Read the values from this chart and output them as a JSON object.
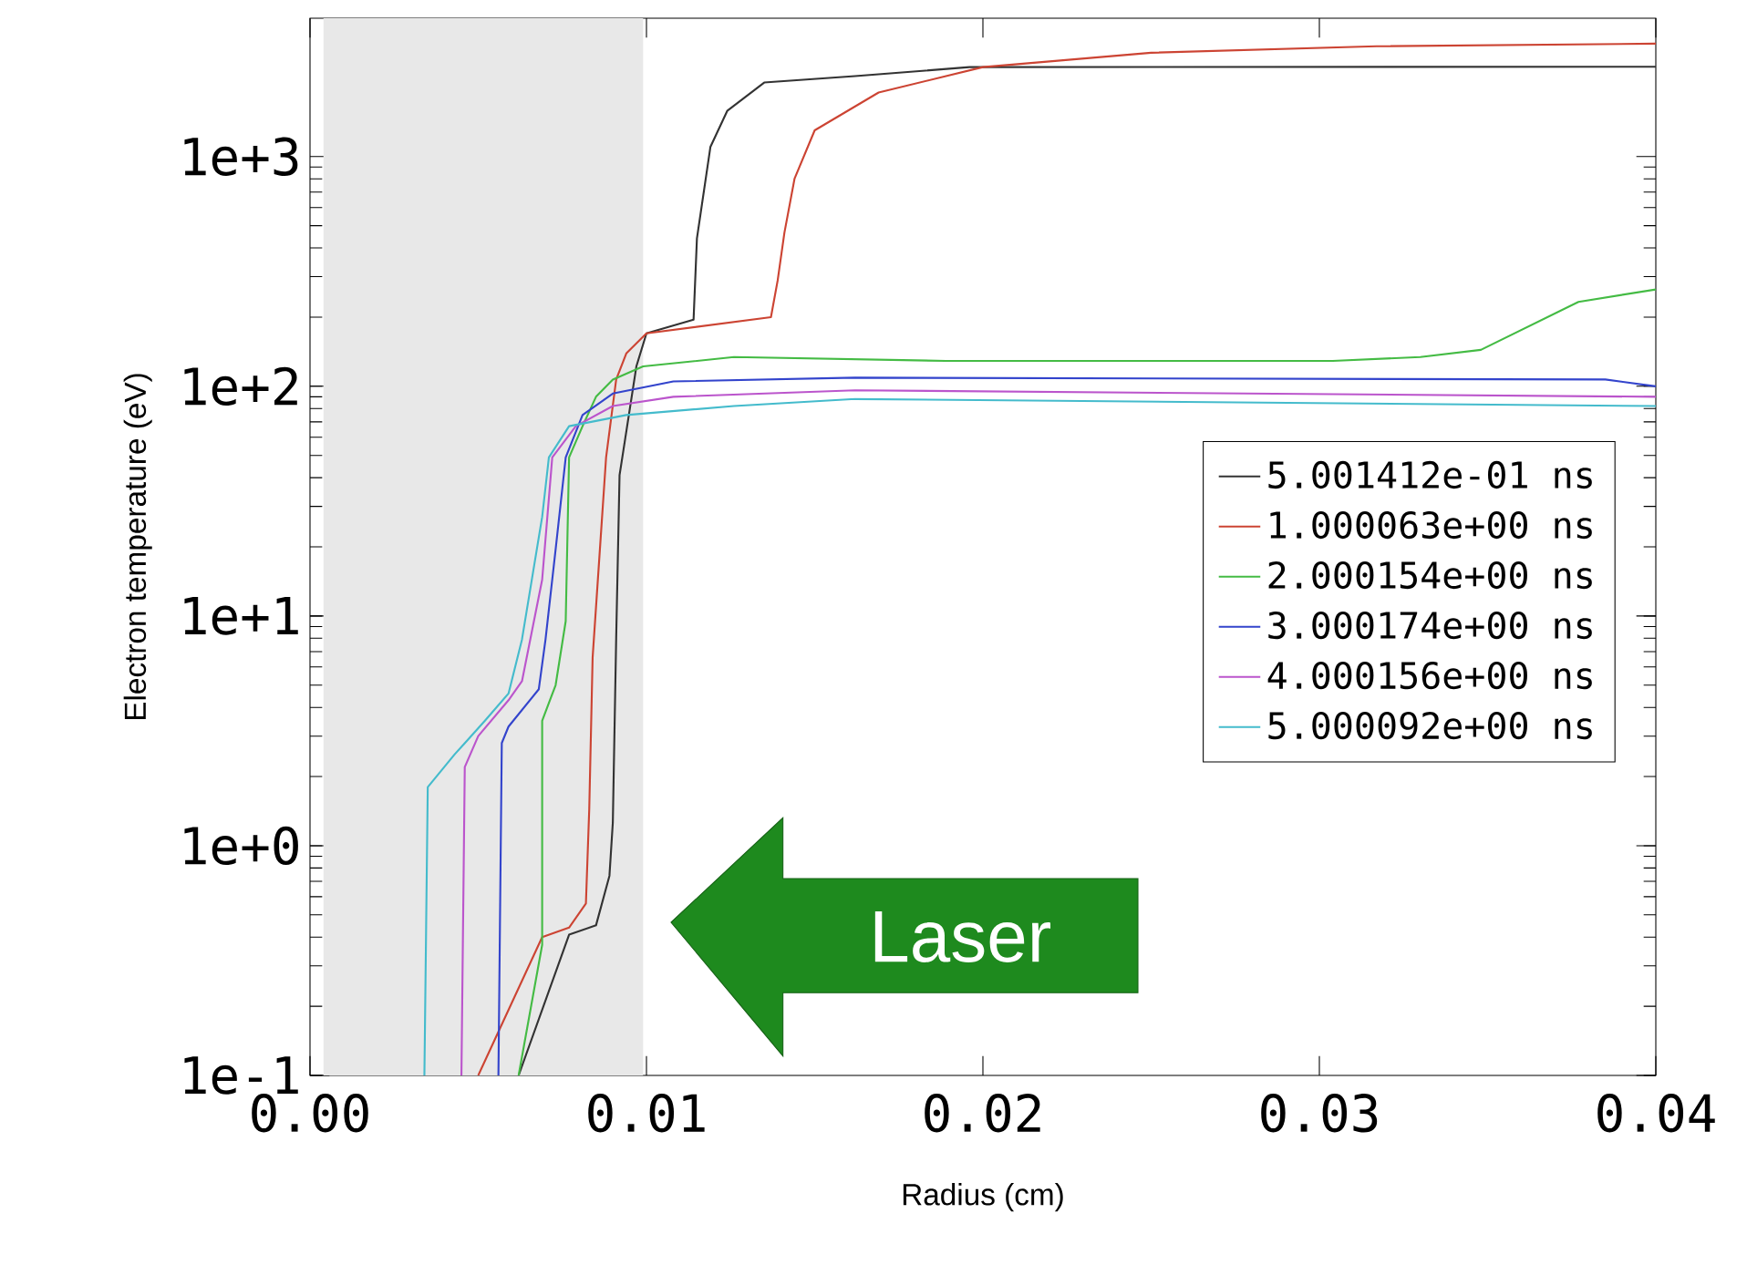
{
  "chart_data": {
    "type": "line",
    "xlabel": "Radius (cm)",
    "ylabel": "Electron temperature (eV)",
    "log": "y",
    "legend": "right",
    "xlim": [
      0,
      0.04
    ],
    "xticks": [
      {
        "value": 0,
        "label": "0.00"
      },
      0.01,
      0.02,
      0.03,
      0.04
    ],
    "ylim": [
      0.1,
      4000
    ],
    "yticks": [
      {
        "value": 0.1,
        "label": "1e-1"
      },
      {
        "value": 1,
        "label": "1e+0"
      },
      {
        "value": 10,
        "label": "1e+1"
      },
      {
        "value": 100,
        "label": "1e+2"
      },
      {
        "value": 1000,
        "label": "1e+3"
      }
    ],
    "bands": [
      {
        "axis": "x",
        "from": 0.0004,
        "to": 0.0099,
        "color": "#e8e8e8"
      }
    ],
    "annotations": [
      "Laser"
    ],
    "series": [
      {
        "name": "5.001412e-01 ns",
        "color": "#333333",
        "x": [
          0.0062,
          0.0077,
          0.0085,
          0.0089,
          0.009,
          0.0091,
          0.0092,
          0.0097,
          0.01,
          0.0114,
          0.0115,
          0.0119,
          0.0124,
          0.0135,
          0.0162,
          0.0196,
          0.04
        ],
        "values": [
          0.1,
          0.41,
          0.45,
          0.74,
          1.26,
          8,
          41,
          122,
          170,
          195,
          440,
          1100,
          1580,
          2100,
          2240,
          2450,
          2460
        ]
      },
      {
        "name": "1.000063e+00 ns",
        "color": "#cc4433",
        "x": [
          0.005,
          0.0069,
          0.0077,
          0.0082,
          0.0083,
          0.0084,
          0.0088,
          0.0091,
          0.0094,
          0.01,
          0.0137,
          0.0139,
          0.0141,
          0.0144,
          0.015,
          0.0169,
          0.02,
          0.025,
          0.0317,
          0.04
        ],
        "values": [
          0.1,
          0.4,
          0.44,
          0.56,
          1.45,
          6.6,
          49,
          107,
          139,
          170,
          200,
          289,
          466,
          800,
          1300,
          1900,
          2450,
          2830,
          3020,
          3100
        ]
      },
      {
        "name": "2.000154e+00 ns",
        "color": "#44bb44",
        "x": [
          0.0062,
          0.0069,
          0.0069,
          0.0073,
          0.0076,
          0.0077,
          0.0081,
          0.0085,
          0.009,
          0.0099,
          0.0126,
          0.0189,
          0.0304,
          0.033,
          0.0348,
          0.0377,
          0.04
        ],
        "values": [
          0.1,
          0.37,
          3.5,
          5.0,
          9.5,
          49,
          67,
          90,
          107,
          122,
          134,
          129,
          129,
          134,
          144,
          233,
          264
        ]
      },
      {
        "name": "3.000174e+00 ns",
        "color": "#3344cc",
        "x": [
          0.0056,
          0.0057,
          0.0059,
          0.0068,
          0.007,
          0.0073,
          0.0076,
          0.0081,
          0.009,
          0.0108,
          0.0162,
          0.0385,
          0.04
        ],
        "values": [
          0.1,
          2.8,
          3.3,
          4.8,
          7.9,
          19.5,
          49,
          75,
          93,
          105,
          109,
          107,
          100
        ]
      },
      {
        "name": "4.000156e+00 ns",
        "color": "#bb55cc",
        "x": [
          0.0045,
          0.0046,
          0.005,
          0.0059,
          0.0063,
          0.0069,
          0.0072,
          0.0079,
          0.009,
          0.0108,
          0.0162,
          0.04
        ],
        "values": [
          0.1,
          2.2,
          3.0,
          4.3,
          5.2,
          14.4,
          49,
          67,
          82,
          90,
          96,
          90
        ]
      },
      {
        "name": "5.000092e+00 ns",
        "color": "#44bbcc",
        "x": [
          0.0034,
          0.0035,
          0.0043,
          0.0052,
          0.0059,
          0.0063,
          0.0069,
          0.0071,
          0.0077,
          0.0094,
          0.0126,
          0.0162,
          0.04
        ],
        "values": [
          0.1,
          1.8,
          2.5,
          3.5,
          4.6,
          7.9,
          27,
          49,
          67,
          75,
          82,
          88,
          82
        ]
      }
    ]
  }
}
